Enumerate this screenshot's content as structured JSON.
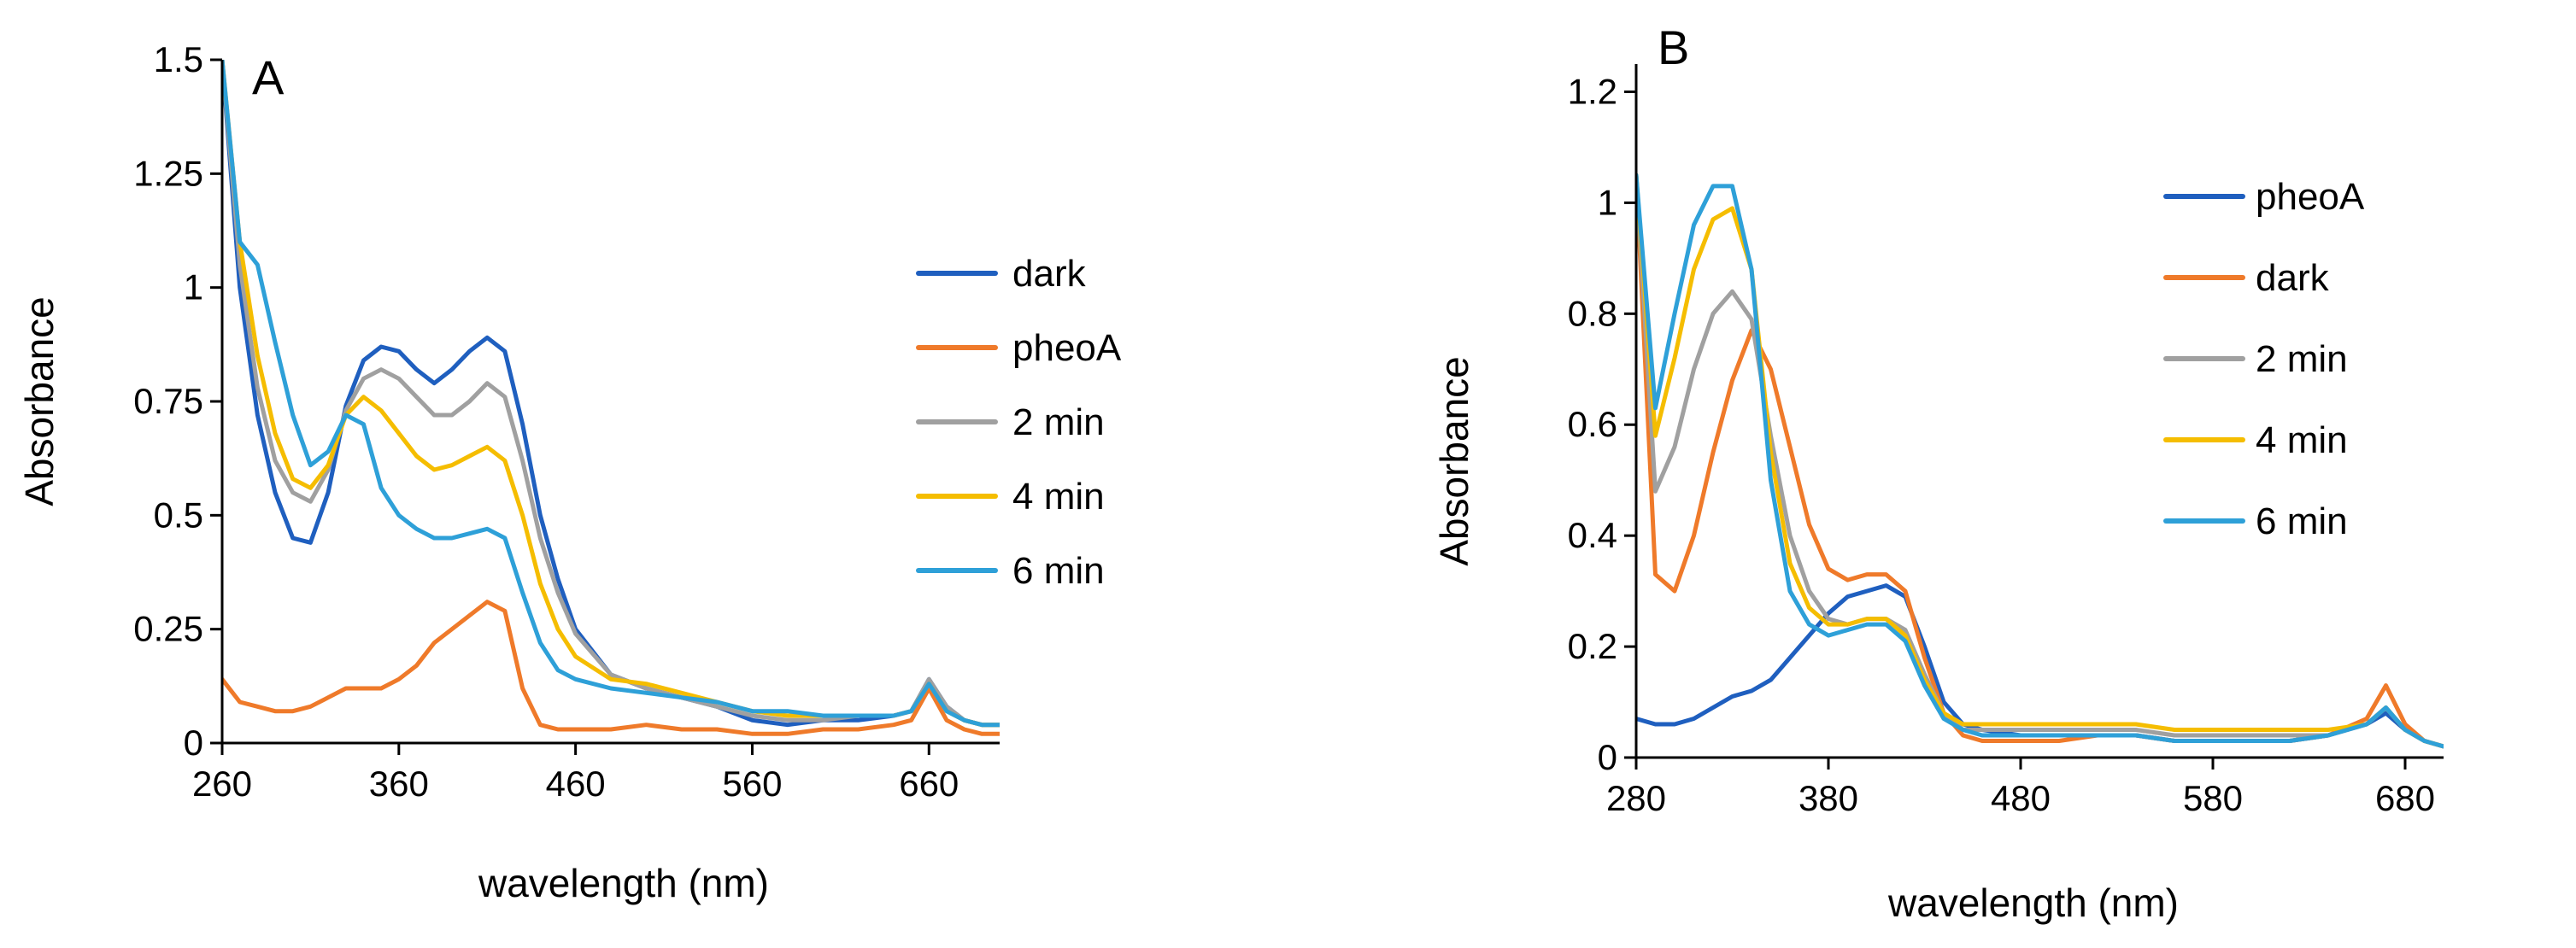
{
  "figure": {
    "colors": {
      "axis": "#000000",
      "dark_blue": "#1f5fbf",
      "orange": "#ef7a2a",
      "gray": "#a0a0a0",
      "yellow": "#f5bd00",
      "light_blue": "#2ea0d8"
    }
  },
  "chart_data": [
    {
      "type": "line",
      "panel_label": "A",
      "xlabel": "wavelength  (nm)",
      "ylabel": "Absorbance",
      "xlim": [
        260,
        700
      ],
      "ylim": [
        0,
        1.5
      ],
      "xticks": [
        260,
        360,
        460,
        560,
        660
      ],
      "xtick_labels": [
        "260",
        "360",
        "460",
        "560",
        "660"
      ],
      "yticks": [
        0,
        0.25,
        0.5,
        0.75,
        1,
        1.25,
        1.5
      ],
      "ytick_labels": [
        "0",
        "0.25",
        "0.5",
        "0.75",
        "1",
        "1.25",
        "1.5"
      ],
      "grid": false,
      "legend_position": "right",
      "series": [
        {
          "name": "dark",
          "color": "#1f5fbf",
          "x": [
            260,
            270,
            280,
            290,
            300,
            310,
            320,
            330,
            340,
            350,
            360,
            370,
            380,
            390,
            400,
            410,
            420,
            430,
            440,
            450,
            460,
            480,
            500,
            520,
            540,
            560,
            580,
            600,
            620,
            640,
            650,
            660,
            670,
            680,
            690,
            700
          ],
          "y": [
            1.5,
            1.0,
            0.72,
            0.55,
            0.45,
            0.44,
            0.55,
            0.74,
            0.84,
            0.87,
            0.86,
            0.82,
            0.79,
            0.82,
            0.86,
            0.89,
            0.86,
            0.7,
            0.5,
            0.36,
            0.25,
            0.15,
            0.12,
            0.1,
            0.08,
            0.05,
            0.04,
            0.05,
            0.05,
            0.06,
            0.07,
            0.14,
            0.08,
            0.05,
            0.04,
            0.04
          ]
        },
        {
          "name": "pheoA",
          "color": "#ef7a2a",
          "x": [
            260,
            270,
            280,
            290,
            300,
            310,
            320,
            330,
            340,
            350,
            360,
            370,
            380,
            390,
            400,
            410,
            420,
            430,
            440,
            450,
            460,
            480,
            500,
            520,
            540,
            560,
            580,
            600,
            620,
            640,
            650,
            660,
            670,
            680,
            690,
            700
          ],
          "y": [
            0.14,
            0.09,
            0.08,
            0.07,
            0.07,
            0.08,
            0.1,
            0.12,
            0.12,
            0.12,
            0.14,
            0.17,
            0.22,
            0.25,
            0.28,
            0.31,
            0.29,
            0.12,
            0.04,
            0.03,
            0.03,
            0.03,
            0.04,
            0.03,
            0.03,
            0.02,
            0.02,
            0.03,
            0.03,
            0.04,
            0.05,
            0.12,
            0.05,
            0.03,
            0.02,
            0.02
          ]
        },
        {
          "name": "2 min",
          "color": "#a0a0a0",
          "x": [
            260,
            270,
            280,
            290,
            300,
            310,
            320,
            330,
            340,
            350,
            360,
            370,
            380,
            390,
            400,
            410,
            420,
            430,
            440,
            450,
            460,
            480,
            500,
            520,
            540,
            560,
            580,
            600,
            620,
            640,
            650,
            660,
            670,
            680,
            690,
            700
          ],
          "y": [
            1.5,
            1.05,
            0.78,
            0.62,
            0.55,
            0.53,
            0.6,
            0.73,
            0.8,
            0.82,
            0.8,
            0.76,
            0.72,
            0.72,
            0.75,
            0.79,
            0.76,
            0.62,
            0.45,
            0.33,
            0.24,
            0.15,
            0.12,
            0.1,
            0.08,
            0.06,
            0.05,
            0.05,
            0.06,
            0.06,
            0.07,
            0.14,
            0.08,
            0.05,
            0.04,
            0.04
          ]
        },
        {
          "name": "4 min",
          "color": "#f5bd00",
          "x": [
            260,
            270,
            280,
            290,
            300,
            310,
            320,
            330,
            340,
            350,
            360,
            370,
            380,
            390,
            400,
            410,
            420,
            430,
            440,
            450,
            460,
            480,
            500,
            520,
            540,
            560,
            580,
            600,
            620,
            640,
            650,
            660,
            670,
            680,
            690,
            700
          ],
          "y": [
            1.5,
            1.1,
            0.85,
            0.68,
            0.58,
            0.56,
            0.61,
            0.72,
            0.76,
            0.73,
            0.68,
            0.63,
            0.6,
            0.61,
            0.63,
            0.65,
            0.62,
            0.5,
            0.35,
            0.25,
            0.19,
            0.14,
            0.13,
            0.11,
            0.09,
            0.07,
            0.06,
            0.06,
            0.06,
            0.06,
            0.07,
            0.13,
            0.07,
            0.05,
            0.04,
            0.04
          ]
        },
        {
          "name": "6 min",
          "color": "#2ea0d8",
          "x": [
            260,
            270,
            280,
            290,
            300,
            310,
            320,
            330,
            340,
            350,
            360,
            370,
            380,
            390,
            400,
            410,
            420,
            430,
            440,
            450,
            460,
            480,
            500,
            520,
            540,
            560,
            580,
            600,
            620,
            640,
            650,
            660,
            670,
            680,
            690,
            700
          ],
          "y": [
            1.5,
            1.1,
            1.05,
            0.88,
            0.72,
            0.61,
            0.64,
            0.72,
            0.7,
            0.56,
            0.5,
            0.47,
            0.45,
            0.45,
            0.46,
            0.47,
            0.45,
            0.33,
            0.22,
            0.16,
            0.14,
            0.12,
            0.11,
            0.1,
            0.09,
            0.07,
            0.07,
            0.06,
            0.06,
            0.06,
            0.07,
            0.13,
            0.07,
            0.05,
            0.04,
            0.04
          ]
        }
      ]
    },
    {
      "type": "line",
      "panel_label": "B",
      "xlabel": "wavelength  (nm)",
      "ylabel": "Absorbance",
      "xlim": [
        280,
        700
      ],
      "ylim": [
        0,
        1.25
      ],
      "xticks": [
        280,
        380,
        480,
        580,
        680
      ],
      "xtick_labels": [
        "280",
        "380",
        "480",
        "580",
        "680"
      ],
      "yticks": [
        0,
        0.2,
        0.4,
        0.6,
        0.8,
        1,
        1.2
      ],
      "ytick_labels": [
        "0",
        "0.2",
        "0.4",
        "0.6",
        "0.8",
        "1",
        "1.2"
      ],
      "grid": false,
      "legend_position": "right",
      "series": [
        {
          "name": "pheoA",
          "color": "#1f5fbf",
          "x": [
            280,
            290,
            300,
            310,
            320,
            330,
            340,
            350,
            360,
            370,
            380,
            390,
            400,
            410,
            420,
            430,
            440,
            450,
            460,
            480,
            500,
            520,
            540,
            560,
            580,
            600,
            620,
            640,
            660,
            670,
            680,
            690,
            700
          ],
          "y": [
            0.07,
            0.06,
            0.06,
            0.07,
            0.09,
            0.11,
            0.12,
            0.14,
            0.18,
            0.22,
            0.26,
            0.29,
            0.3,
            0.31,
            0.29,
            0.2,
            0.1,
            0.06,
            0.05,
            0.04,
            0.04,
            0.04,
            0.04,
            0.03,
            0.03,
            0.03,
            0.03,
            0.04,
            0.06,
            0.08,
            0.05,
            0.03,
            0.02
          ]
        },
        {
          "name": "dark",
          "color": "#ef7a2a",
          "x": [
            280,
            290,
            300,
            310,
            320,
            330,
            340,
            350,
            360,
            370,
            380,
            390,
            400,
            410,
            420,
            430,
            440,
            450,
            460,
            480,
            500,
            520,
            540,
            560,
            580,
            600,
            620,
            640,
            660,
            670,
            680,
            690,
            700
          ],
          "y": [
            1.05,
            0.33,
            0.3,
            0.4,
            0.55,
            0.68,
            0.77,
            0.7,
            0.56,
            0.42,
            0.34,
            0.32,
            0.33,
            0.33,
            0.3,
            0.18,
            0.08,
            0.04,
            0.03,
            0.03,
            0.03,
            0.04,
            0.04,
            0.03,
            0.03,
            0.03,
            0.03,
            0.04,
            0.07,
            0.13,
            0.06,
            0.03,
            0.02
          ]
        },
        {
          "name": "2 min",
          "color": "#a0a0a0",
          "x": [
            280,
            290,
            300,
            310,
            320,
            330,
            340,
            350,
            360,
            370,
            380,
            390,
            400,
            410,
            420,
            430,
            440,
            450,
            460,
            480,
            500,
            520,
            540,
            560,
            580,
            600,
            620,
            640,
            660,
            670,
            680,
            690,
            700
          ],
          "y": [
            1.05,
            0.48,
            0.56,
            0.7,
            0.8,
            0.84,
            0.79,
            0.58,
            0.4,
            0.3,
            0.25,
            0.24,
            0.25,
            0.25,
            0.23,
            0.15,
            0.08,
            0.05,
            0.05,
            0.05,
            0.05,
            0.05,
            0.05,
            0.04,
            0.04,
            0.04,
            0.04,
            0.04,
            0.06,
            0.09,
            0.05,
            0.03,
            0.02
          ]
        },
        {
          "name": "4 min",
          "color": "#f5bd00",
          "x": [
            280,
            290,
            300,
            310,
            320,
            330,
            340,
            350,
            360,
            370,
            380,
            390,
            400,
            410,
            420,
            430,
            440,
            450,
            460,
            480,
            500,
            520,
            540,
            560,
            580,
            600,
            620,
            640,
            660,
            670,
            680,
            690,
            700
          ],
          "y": [
            1.05,
            0.58,
            0.72,
            0.88,
            0.97,
            0.99,
            0.88,
            0.55,
            0.35,
            0.27,
            0.24,
            0.24,
            0.25,
            0.25,
            0.22,
            0.14,
            0.08,
            0.06,
            0.06,
            0.06,
            0.06,
            0.06,
            0.06,
            0.05,
            0.05,
            0.05,
            0.05,
            0.05,
            0.06,
            0.09,
            0.05,
            0.03,
            0.02
          ]
        },
        {
          "name": "6 min",
          "color": "#2ea0d8",
          "x": [
            280,
            290,
            300,
            310,
            320,
            330,
            340,
            350,
            360,
            370,
            380,
            390,
            400,
            410,
            420,
            430,
            440,
            450,
            460,
            480,
            500,
            520,
            540,
            560,
            580,
            600,
            620,
            640,
            660,
            670,
            680,
            690,
            700
          ],
          "y": [
            1.05,
            0.63,
            0.8,
            0.96,
            1.03,
            1.03,
            0.88,
            0.5,
            0.3,
            0.24,
            0.22,
            0.23,
            0.24,
            0.24,
            0.21,
            0.13,
            0.07,
            0.05,
            0.04,
            0.04,
            0.04,
            0.04,
            0.04,
            0.03,
            0.03,
            0.03,
            0.03,
            0.04,
            0.06,
            0.09,
            0.05,
            0.03,
            0.02
          ]
        }
      ]
    }
  ]
}
